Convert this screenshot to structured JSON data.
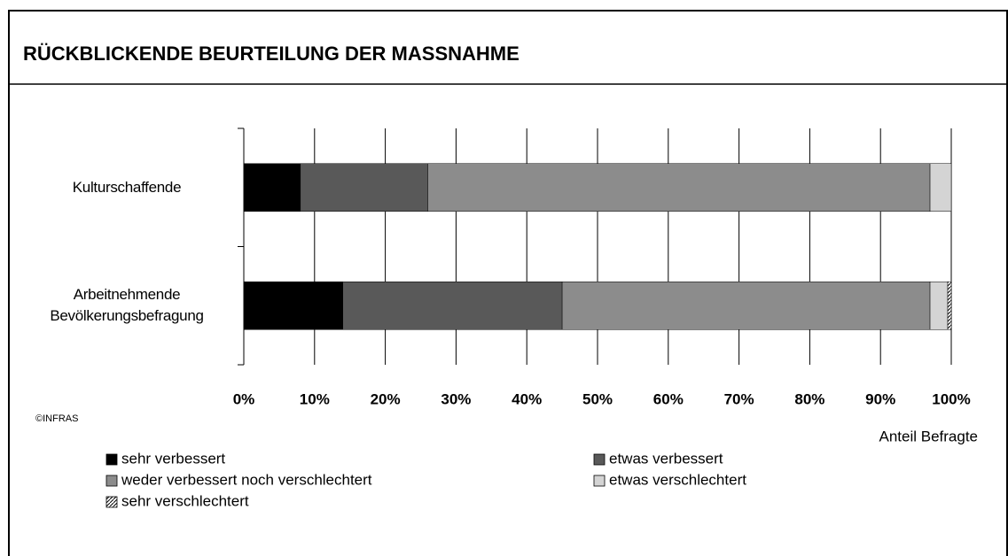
{
  "chart_data": {
    "type": "stacked_barh",
    "title": "RÜCKBLICKENDE BEURTEILUNG DER MASSNAHME",
    "xlabel": "Anteil Befragte",
    "source": "©INFRAS",
    "categories": [
      "Kulturschaffende",
      "Arbeitnehmende Bevölkerungsbefragung"
    ],
    "series": [
      {
        "name": "sehr verbessert",
        "color": "#000000",
        "values": [
          8,
          14
        ]
      },
      {
        "name": "etwas verbessert",
        "color": "#595959",
        "values": [
          18,
          31
        ]
      },
      {
        "name": "weder verbessert noch verschlechtert",
        "color": "#8c8c8c",
        "values": [
          71,
          52
        ]
      },
      {
        "name": "etwas verschlechtert",
        "color": "#d4d4d4",
        "values": [
          3,
          2.5
        ]
      },
      {
        "name": "sehr verschlechtert",
        "color": "hatch",
        "values": [
          0,
          0.5
        ]
      }
    ],
    "xlim": [
      0,
      100
    ],
    "xticks": [
      {
        "value": 0,
        "label": "0%"
      },
      {
        "value": 10,
        "label": "10%"
      },
      {
        "value": 20,
        "label": "20%"
      },
      {
        "value": 30,
        "label": "30%"
      },
      {
        "value": 40,
        "label": "40%"
      },
      {
        "value": 50,
        "label": "50%"
      },
      {
        "value": 60,
        "label": "60%"
      },
      {
        "value": 70,
        "label": "70%"
      },
      {
        "value": 80,
        "label": "80%"
      },
      {
        "value": 90,
        "label": "90%"
      },
      {
        "value": 100,
        "label": "100%"
      }
    ],
    "grid": true
  }
}
